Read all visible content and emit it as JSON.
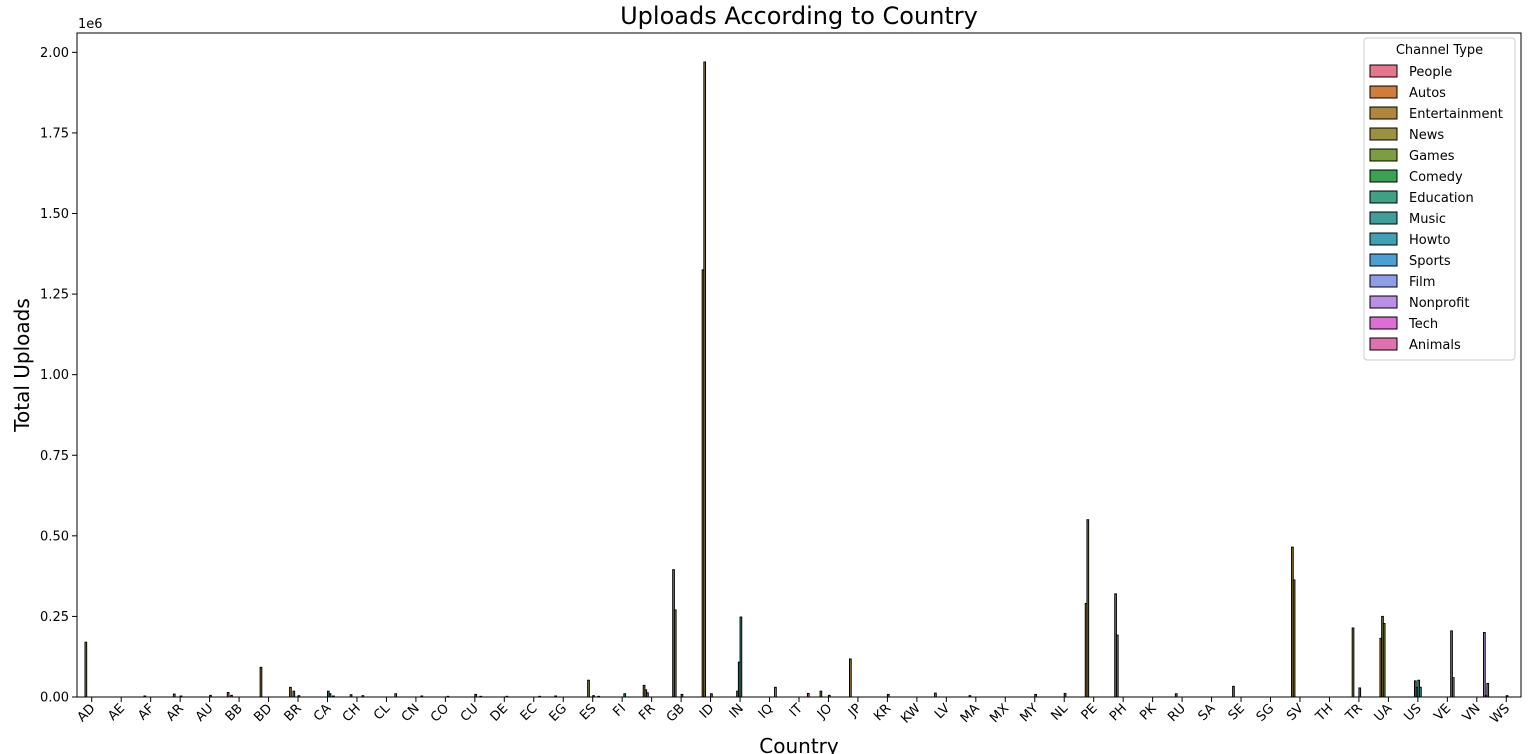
{
  "chart_data": {
    "type": "bar",
    "title": "Uploads According to Country",
    "xlabel": "Country",
    "ylabel": "Total Uploads",
    "y_offset_label": "1e6",
    "ylim": [
      0,
      2.06
    ],
    "yticks": [
      "0.00",
      "0.25",
      "0.50",
      "0.75",
      "1.00",
      "1.25",
      "1.50",
      "1.75",
      "2.00"
    ],
    "ytick_values": [
      0,
      0.25,
      0.5,
      0.75,
      1.0,
      1.25,
      1.5,
      1.75,
      2.0
    ],
    "legend_title": "Channel Type",
    "legend_position": "top-right",
    "categories": [
      "AD",
      "AE",
      "AF",
      "AR",
      "AU",
      "BB",
      "BD",
      "BR",
      "CA",
      "CH",
      "CL",
      "CN",
      "CO",
      "CU",
      "DE",
      "EC",
      "EG",
      "ES",
      "FI",
      "FR",
      "GB",
      "ID",
      "IN",
      "IQ",
      "IT",
      "JO",
      "JP",
      "KR",
      "KW",
      "LV",
      "MA",
      "MX",
      "MY",
      "NL",
      "PE",
      "PH",
      "PK",
      "RU",
      "SA",
      "SE",
      "SG",
      "SV",
      "TH",
      "TR",
      "UA",
      "US",
      "VE",
      "VN",
      "WS"
    ],
    "series": [
      {
        "name": "People",
        "color": "#e8768a"
      },
      {
        "name": "Autos",
        "color": "#d07c3a"
      },
      {
        "name": "Entertainment",
        "color": "#b0863e"
      },
      {
        "name": "News",
        "color": "#9a9141"
      },
      {
        "name": "Games",
        "color": "#7e9c40"
      },
      {
        "name": "Comedy",
        "color": "#3aa253"
      },
      {
        "name": "Education",
        "color": "#3da186"
      },
      {
        "name": "Music",
        "color": "#3e9e9a"
      },
      {
        "name": "Howto",
        "color": "#40a0b4"
      },
      {
        "name": "Sports",
        "color": "#4aa0d4"
      },
      {
        "name": "Film",
        "color": "#8d9ee8"
      },
      {
        "name": "Nonprofit",
        "color": "#b990e6"
      },
      {
        "name": "Tech",
        "color": "#dc6ed6"
      },
      {
        "name": "Animals",
        "color": "#e070ae"
      }
    ],
    "bars": [
      {
        "country": "AD",
        "series": "News",
        "value": 0.17
      },
      {
        "country": "AF",
        "series": "News",
        "value": 0.003
      },
      {
        "country": "AR",
        "series": "News",
        "value": 0.009
      },
      {
        "country": "AR",
        "series": "Music",
        "value": 0.003
      },
      {
        "country": "AU",
        "series": "Music",
        "value": 0.005
      },
      {
        "country": "BB",
        "series": "People",
        "value": 0.014
      },
      {
        "country": "BB",
        "series": "Entertainment",
        "value": 0.005
      },
      {
        "country": "BD",
        "series": "Entertainment",
        "value": 0.092
      },
      {
        "country": "BR",
        "series": "Games",
        "value": 0.018
      },
      {
        "country": "BR",
        "series": "Entertainment",
        "value": 0.03
      },
      {
        "country": "BR",
        "series": "Music",
        "value": 0.004
      },
      {
        "country": "CA",
        "series": "Music",
        "value": 0.018
      },
      {
        "country": "CA",
        "series": "Howto",
        "value": 0.01
      },
      {
        "country": "CA",
        "series": "Film",
        "value": 0.003
      },
      {
        "country": "CH",
        "series": "Film",
        "value": 0.004
      },
      {
        "country": "CH",
        "series": "News",
        "value": 0.007
      },
      {
        "country": "CL",
        "series": "Tech",
        "value": 0.01
      },
      {
        "country": "CN",
        "series": "Film",
        "value": 0.003
      },
      {
        "country": "CO",
        "series": "Howto",
        "value": 0.002
      },
      {
        "country": "CU",
        "series": "Music",
        "value": 0.008
      },
      {
        "country": "CU",
        "series": "Film",
        "value": 0.002
      },
      {
        "country": "DE",
        "series": "Howto",
        "value": 0.002
      },
      {
        "country": "EC",
        "series": "Film",
        "value": 0.002
      },
      {
        "country": "EG",
        "series": "Entertainment",
        "value": 0.003
      },
      {
        "country": "ES",
        "series": "Games",
        "value": 0.052
      },
      {
        "country": "ES",
        "series": "Music",
        "value": 0.004
      },
      {
        "country": "ES",
        "series": "Film",
        "value": 0.002
      },
      {
        "country": "FI",
        "series": "Howto",
        "value": 0.01
      },
      {
        "country": "FR",
        "series": "Entertainment",
        "value": 0.036
      },
      {
        "country": "FR",
        "series": "News",
        "value": 0.022
      },
      {
        "country": "FR",
        "series": "Games",
        "value": 0.013
      },
      {
        "country": "GB",
        "series": "Entertainment",
        "value": 0.395
      },
      {
        "country": "GB",
        "series": "News",
        "value": 0.27
      },
      {
        "country": "GB",
        "series": "Music",
        "value": 0.008
      },
      {
        "country": "ID",
        "series": "Entertainment",
        "value": 1.325
      },
      {
        "country": "ID",
        "series": "News",
        "value": 1.97
      },
      {
        "country": "ID",
        "series": "Music",
        "value": 0.01
      },
      {
        "country": "IN",
        "series": "Comedy",
        "value": 0.018
      },
      {
        "country": "IN",
        "series": "Education",
        "value": 0.108
      },
      {
        "country": "IN",
        "series": "Music",
        "value": 0.248
      },
      {
        "country": "IQ",
        "series": "Film",
        "value": 0.03
      },
      {
        "country": "IT",
        "series": "Tech",
        "value": 0.011
      },
      {
        "country": "JO",
        "series": "Entertainment",
        "value": 0.018
      },
      {
        "country": "JO",
        "series": "Music",
        "value": 0.005
      },
      {
        "country": "JP",
        "series": "Entertainment",
        "value": 0.118
      },
      {
        "country": "KR",
        "series": "Music",
        "value": 0.008
      },
      {
        "country": "LV",
        "series": "People",
        "value": 0.012
      },
      {
        "country": "MA",
        "series": "News",
        "value": 0.004
      },
      {
        "country": "MY",
        "series": "Music",
        "value": 0.008
      },
      {
        "country": "NL",
        "series": "Music",
        "value": 0.011
      },
      {
        "country": "PE",
        "series": "Entertainment",
        "value": 0.29
      },
      {
        "country": "PE",
        "series": "News",
        "value": 0.55
      },
      {
        "country": "PH",
        "series": "Entertainment",
        "value": 0.32
      },
      {
        "country": "PH",
        "series": "News",
        "value": 0.192
      },
      {
        "country": "RU",
        "series": "News",
        "value": 0.01
      },
      {
        "country": "SE",
        "series": "Entertainment",
        "value": 0.033
      },
      {
        "country": "SV",
        "series": "Entertainment",
        "value": 0.465
      },
      {
        "country": "SV",
        "series": "News",
        "value": 0.363
      },
      {
        "country": "TR",
        "series": "Music",
        "value": 0.028
      },
      {
        "country": "TR",
        "series": "News",
        "value": 0.214
      },
      {
        "country": "UA",
        "series": "Entertainment",
        "value": 0.182
      },
      {
        "country": "UA",
        "series": "News",
        "value": 0.25
      },
      {
        "country": "UA",
        "series": "Games",
        "value": 0.228
      },
      {
        "country": "US",
        "series": "Comedy",
        "value": 0.05
      },
      {
        "country": "US",
        "series": "Education",
        "value": 0.03
      },
      {
        "country": "US",
        "series": "Music",
        "value": 0.052
      },
      {
        "country": "US",
        "series": "Howto",
        "value": 0.03
      },
      {
        "country": "VE",
        "series": "Sports",
        "value": 0.205
      },
      {
        "country": "VE",
        "series": "Film",
        "value": 0.06
      },
      {
        "country": "VN",
        "series": "Nonprofit",
        "value": 0.2
      },
      {
        "country": "VN",
        "series": "Tech",
        "value": 0.004
      },
      {
        "country": "VN",
        "series": "Animals",
        "value": 0.042
      },
      {
        "country": "WS",
        "series": "Music",
        "value": 0.004
      }
    ]
  }
}
